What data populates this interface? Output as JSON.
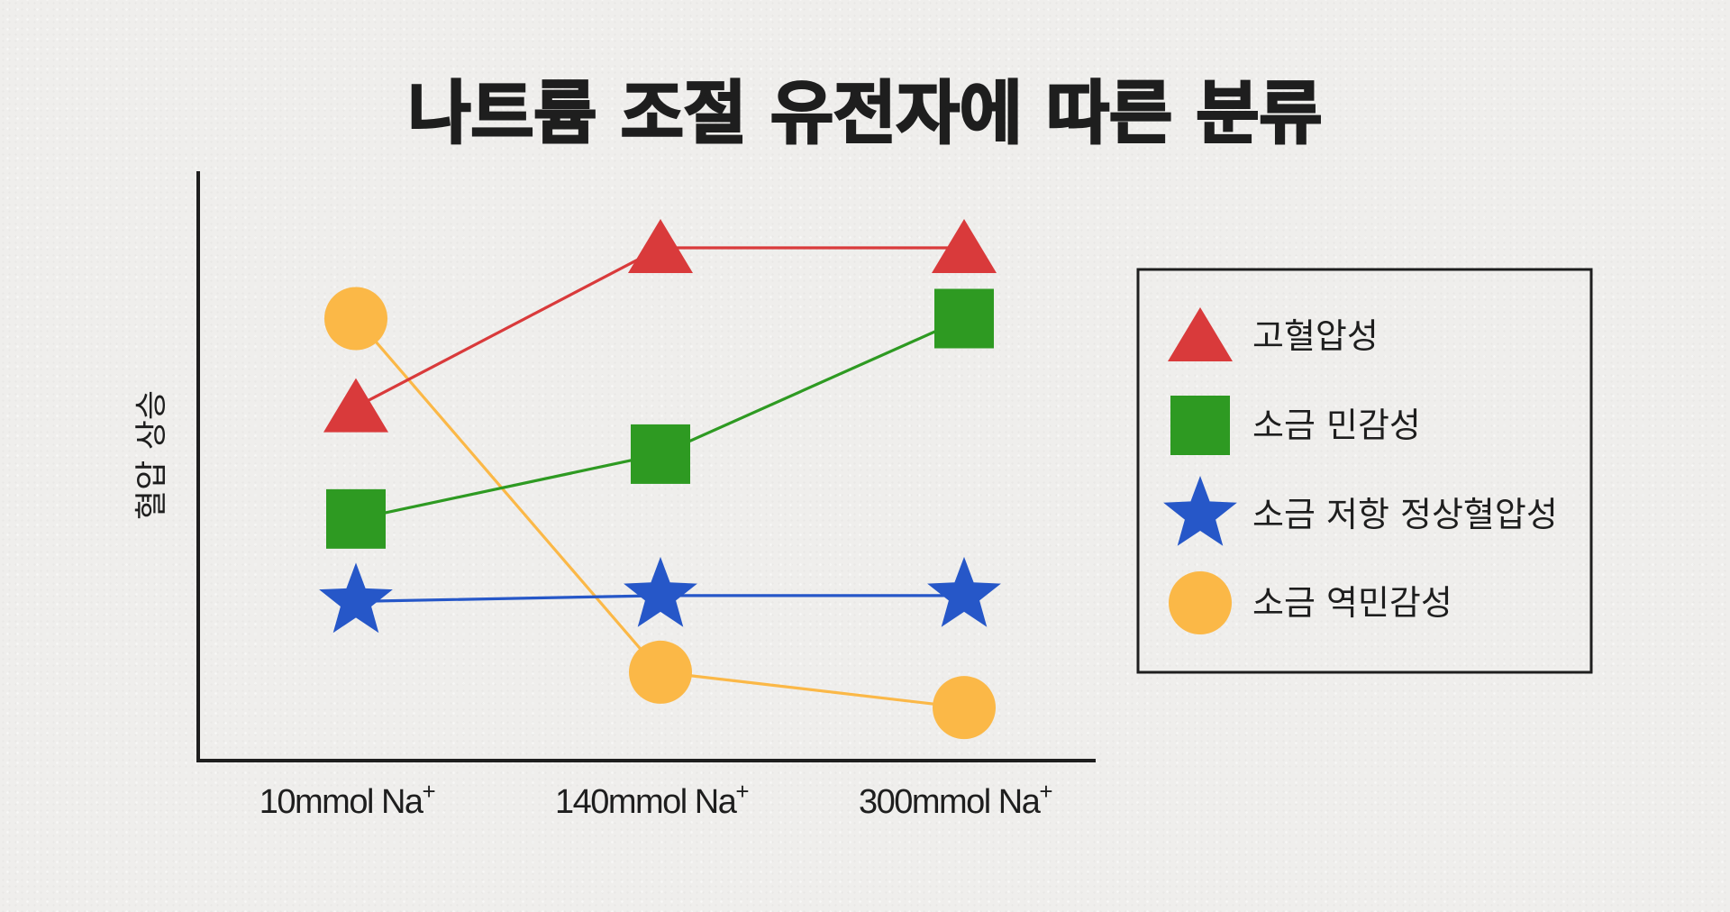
{
  "chart_data": {
    "type": "line",
    "title": "나트륨 조절 유전자에 따른 분류",
    "xlabel": "",
    "ylabel": "혈압 상승",
    "categories": [
      {
        "base": "10mmol Na",
        "sup": "+"
      },
      {
        "base": "140mmol Na",
        "sup": "+"
      },
      {
        "base": "300mmol Na",
        "sup": "+"
      }
    ],
    "ylim": [
      0,
      100
    ],
    "y_ticks_shown": false,
    "grid": false,
    "legend_position": "right",
    "series": [
      {
        "name": "고혈압성",
        "marker": "triangle",
        "color": "#d93a3b",
        "values": [
          60,
          87,
          87
        ]
      },
      {
        "name": "소금 민감성",
        "marker": "square",
        "color": "#2e9a22",
        "values": [
          41,
          52,
          75
        ]
      },
      {
        "name": "소금 저항 정상혈압성",
        "marker": "star",
        "color": "#2657c8",
        "values": [
          27,
          28,
          28
        ]
      },
      {
        "name": "소금 역민감성",
        "marker": "circle",
        "color": "#fbb847",
        "values": [
          75,
          15,
          9
        ]
      }
    ]
  }
}
